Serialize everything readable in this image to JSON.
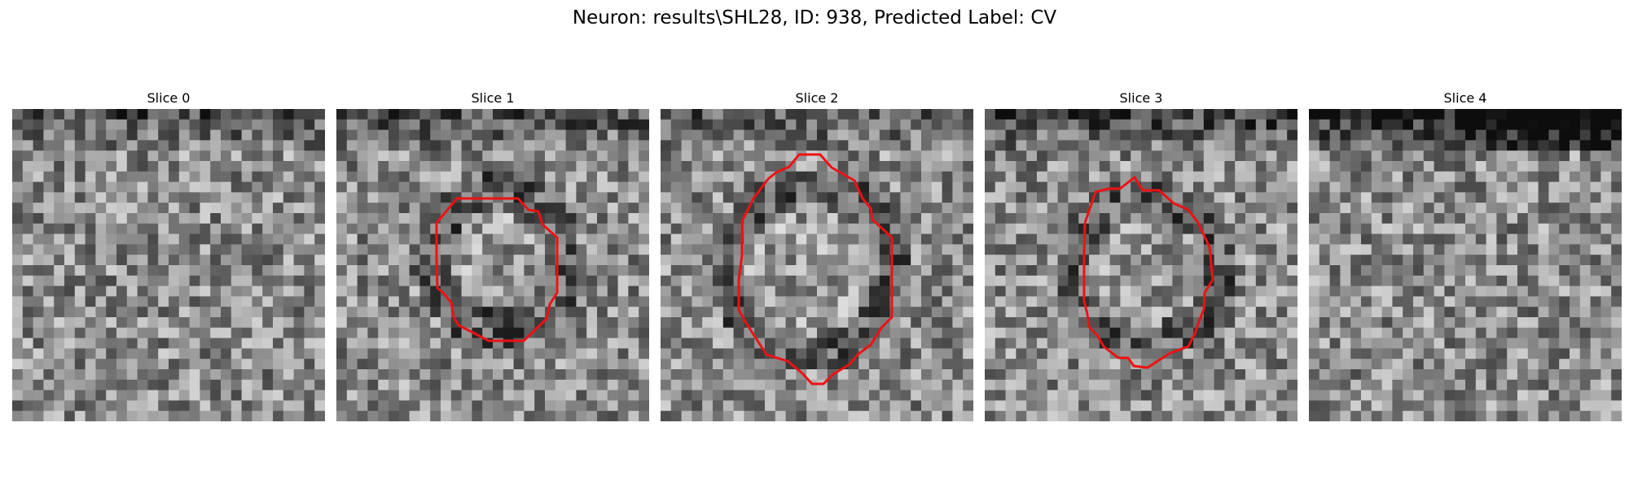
{
  "figure": {
    "title": "Neuron: results\\SHL28, ID: 938, Predicted Label: CV"
  },
  "colors": {
    "background": "#ffffff",
    "contour": "#ee1111",
    "colormap": "gray"
  },
  "grid": {
    "rows": 30,
    "cols": 30
  },
  "panels": [
    {
      "label": "Slice 0",
      "seed": 11,
      "has_contour": false
    },
    {
      "label": "Slice 1",
      "seed": 23,
      "has_contour": true
    },
    {
      "label": "Slice 2",
      "seed": 37,
      "has_contour": true
    },
    {
      "label": "Slice 3",
      "seed": 41,
      "has_contour": true
    },
    {
      "label": "Slice 4",
      "seed": 53,
      "has_contour": false
    }
  ]
}
